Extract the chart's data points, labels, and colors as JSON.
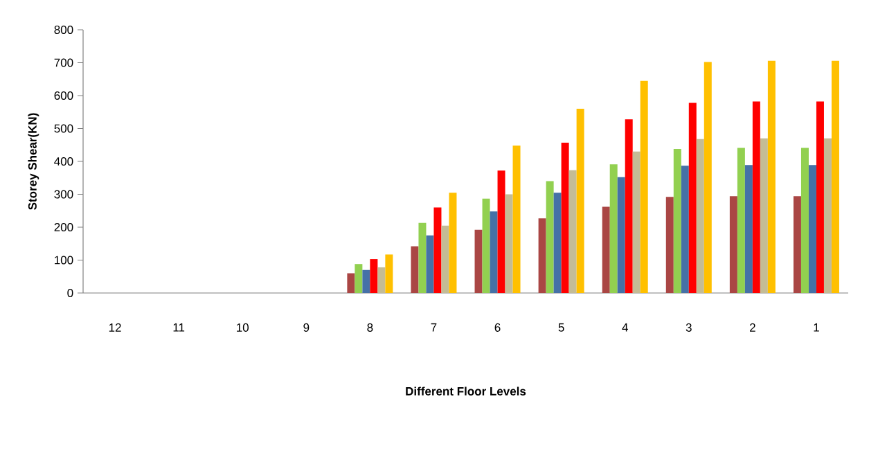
{
  "chart_data": {
    "type": "bar",
    "xlabel": "Different Floor Levels",
    "ylabel": "Storey  Shear(KN)",
    "categories": [
      "12",
      "11",
      "10",
      "9",
      "8",
      "7",
      "6",
      "5",
      "4",
      "3",
      "2",
      "1"
    ],
    "series": [
      {
        "color": "#aa4644",
        "values": [
          0,
          0,
          0,
          0,
          60,
          142,
          192,
          227,
          262,
          292,
          294,
          294
        ]
      },
      {
        "color": "#92d050",
        "values": [
          0,
          0,
          0,
          0,
          88,
          213,
          287,
          340,
          391,
          438,
          441,
          441
        ]
      },
      {
        "color": "#4571a7",
        "values": [
          0,
          0,
          0,
          0,
          70,
          175,
          248,
          305,
          352,
          387,
          389,
          389
        ]
      },
      {
        "color": "#ff0000",
        "values": [
          0,
          0,
          0,
          0,
          103,
          260,
          372,
          457,
          528,
          578,
          582,
          582
        ]
      },
      {
        "color": "#c4bc96",
        "values": [
          0,
          0,
          0,
          0,
          78,
          205,
          300,
          373,
          430,
          468,
          470,
          470
        ]
      },
      {
        "color": "#ffc000",
        "values": [
          0,
          0,
          0,
          0,
          117,
          305,
          448,
          560,
          645,
          702,
          706,
          706
        ]
      }
    ],
    "ylim": [
      0,
      800
    ],
    "yticks": [
      0,
      100,
      200,
      300,
      400,
      500,
      600,
      700,
      800
    ],
    "grid": false
  }
}
